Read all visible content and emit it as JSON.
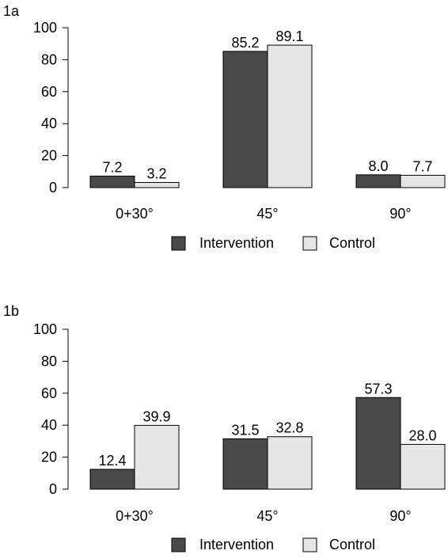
{
  "chart_data": [
    {
      "type": "bar",
      "panel_label": "1a",
      "categories": [
        "0+30°",
        "45°",
        "90°"
      ],
      "series": [
        {
          "name": "Intervention",
          "values": [
            7.2,
            85.2,
            8.0
          ],
          "labels": [
            "7.2",
            "85.2",
            "8.0"
          ],
          "color": "#4a4a4a"
        },
        {
          "name": "Control",
          "values": [
            3.2,
            89.1,
            7.7
          ],
          "labels": [
            "3.2",
            "89.1",
            "7.7"
          ],
          "color": "#e6e6e6"
        }
      ],
      "ylim": [
        0,
        100
      ],
      "yticks": [
        "0",
        "20",
        "40",
        "60",
        "80",
        "100"
      ],
      "grid": false,
      "legend": "bottom"
    },
    {
      "type": "bar",
      "panel_label": "1b",
      "categories": [
        "0+30°",
        "45°",
        "90°"
      ],
      "series": [
        {
          "name": "Intervention",
          "values": [
            12.4,
            31.5,
            57.3
          ],
          "labels": [
            "12.4",
            "31.5",
            "57.3"
          ],
          "color": "#4a4a4a"
        },
        {
          "name": "Control",
          "values": [
            39.9,
            32.8,
            28.0
          ],
          "labels": [
            "39.9",
            "32.8",
            "28.0"
          ],
          "color": "#e6e6e6"
        }
      ],
      "ylim": [
        0,
        100
      ],
      "yticks": [
        "0",
        "20",
        "40",
        "60",
        "80",
        "100"
      ],
      "grid": false,
      "legend": "bottom"
    }
  ]
}
